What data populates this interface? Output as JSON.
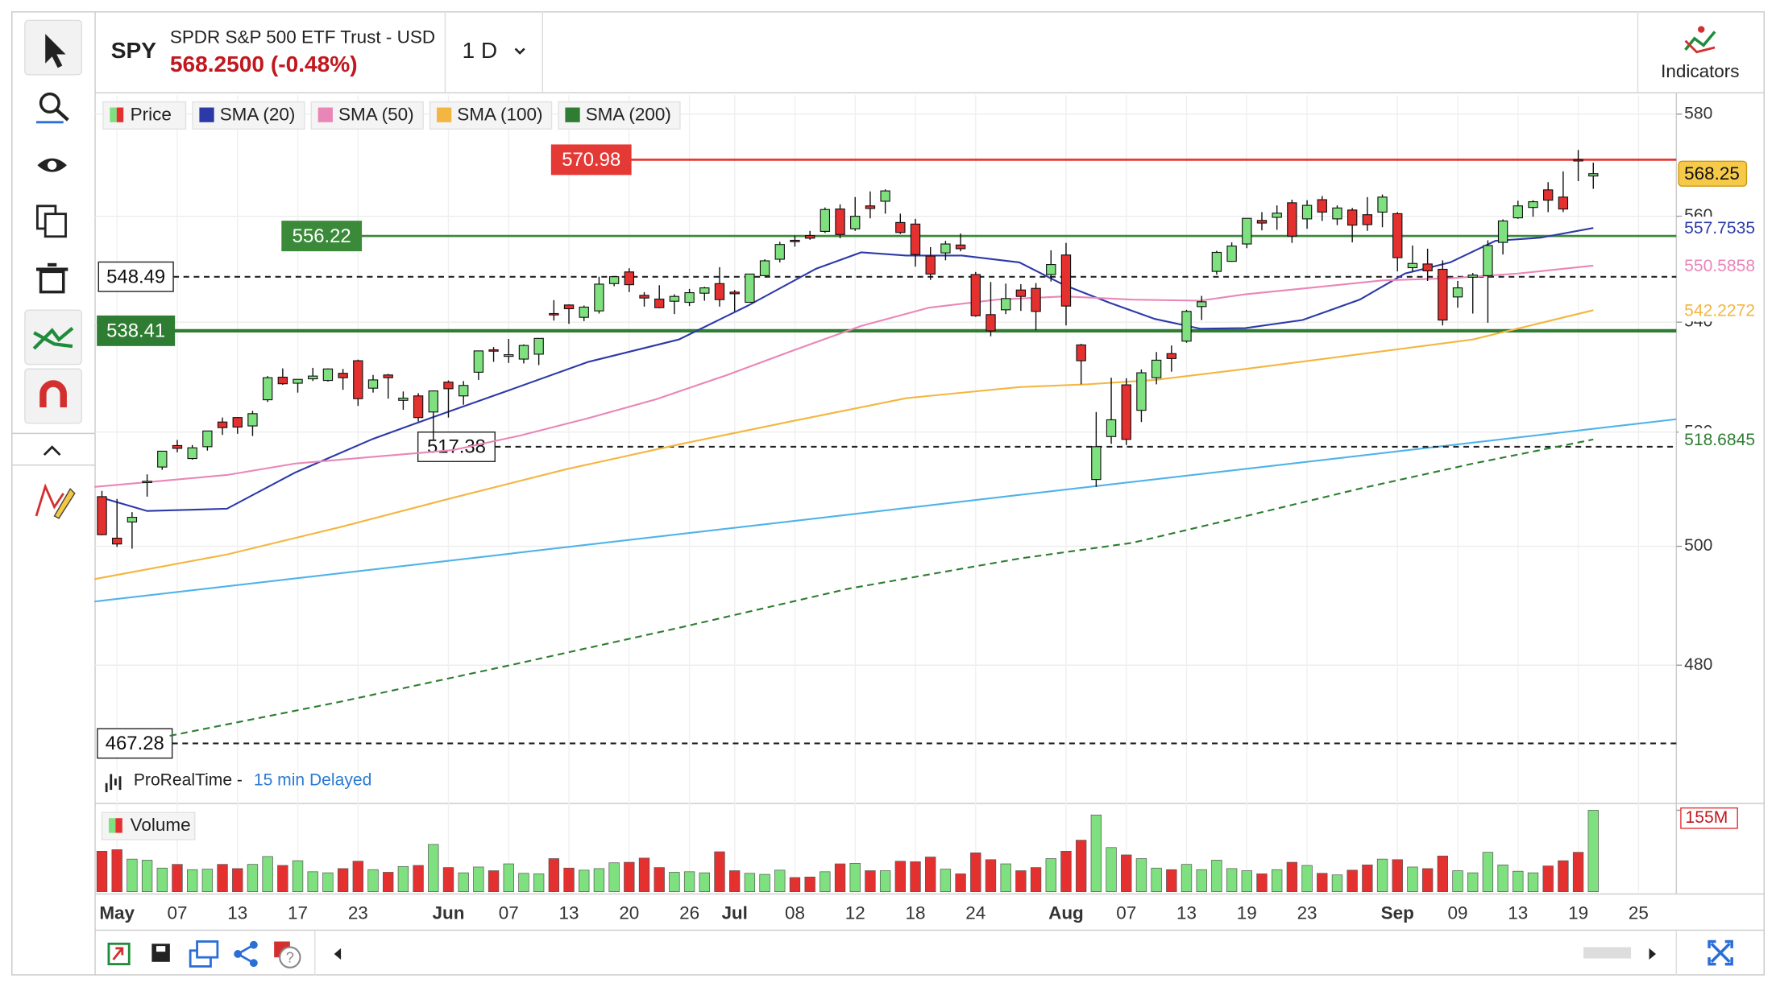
{
  "header": {
    "symbol": "SPY",
    "name": "SPDR S&P 500 ETF Trust - USD",
    "quote": "568.2500 (-0.48%)",
    "interval": "1 D",
    "indicators": "Indicators"
  },
  "footer": {
    "source": "ProRealTime -",
    "delay": "15 min Delayed"
  },
  "chart_data": {
    "type": "candlestick",
    "log": true,
    "grid": true,
    "ylim": [
      458.1,
      583.8
    ],
    "yticks": [
      480,
      500,
      520,
      540,
      560,
      580
    ],
    "price_legend": "Price",
    "up_color": "#7ee07e",
    "down_color": "#e53030",
    "last_price_color": "#f7c948",
    "categories": [
      null,
      "May",
      null,
      null,
      null,
      "07",
      null,
      null,
      null,
      "13",
      null,
      null,
      null,
      "17",
      null,
      null,
      null,
      "23",
      null,
      null,
      null,
      null,
      null,
      "Jun",
      null,
      null,
      null,
      "07",
      null,
      null,
      null,
      "13",
      null,
      null,
      null,
      "20",
      null,
      null,
      null,
      "26",
      null,
      null,
      "Jul",
      null,
      null,
      null,
      "08",
      null,
      null,
      null,
      "12",
      null,
      null,
      null,
      "18",
      null,
      null,
      null,
      "24",
      null,
      null,
      null,
      null,
      null,
      "Aug",
      null,
      null,
      null,
      "07",
      null,
      null,
      null,
      "13",
      null,
      null,
      null,
      "19",
      null,
      null,
      null,
      "23",
      null,
      null,
      null,
      null,
      null,
      "Sep",
      null,
      null,
      null,
      "09",
      null,
      null,
      null,
      "13",
      null,
      null,
      null,
      "19",
      null,
      null,
      null,
      "25"
    ],
    "open": [
      508.6,
      501.4,
      504.2,
      511.2,
      513.8,
      517.6,
      515.3,
      517.4,
      521.8,
      522.6,
      521.1,
      525.8,
      529.9,
      528.8,
      529.6,
      529.3,
      530.6,
      532.9,
      527.9,
      530.3,
      525.7,
      526.5,
      523.6,
      529.0,
      526.5,
      530.8,
      534.9,
      533.7,
      533.2,
      534.1,
      541.6,
      543.2,
      540.9,
      542.1,
      547.2,
      549.4,
      545.0,
      544.3,
      543.9,
      543.7,
      545.4,
      547.2,
      545.6,
      543.7,
      548.7,
      551.8,
      555.4,
      556.3,
      557.1,
      561.4,
      557.6,
      562.0,
      562.9,
      558.8,
      558.5,
      552.4,
      553.0,
      554.5,
      548.9,
      541.4,
      542.3,
      546.0,
      546.3,
      548.9,
      552.6,
      535.8,
      511.6,
      519.2,
      528.5,
      523.9,
      529.8,
      534.2,
      536.5,
      542.9,
      549.5,
      551.4,
      554.7,
      559.2,
      559.8,
      562.6,
      559.5,
      563.2,
      559.5,
      561.2,
      560.3,
      560.8,
      560.5,
      550.2,
      550.9,
      549.9,
      544.7,
      548.4,
      548.7,
      555.0,
      559.7,
      561.7,
      565.1,
      563.7,
      571.0,
      567.8,
      null,
      null,
      null
    ],
    "high": [
      509.6,
      508.2,
      505.9,
      512.5,
      516.6,
      518.6,
      517.7,
      520.2,
      522.6,
      522.7,
      523.8,
      530.1,
      531.5,
      529.5,
      531.6,
      531.5,
      531.4,
      533.1,
      530.3,
      530.5,
      527.3,
      527.0,
      527.5,
      529.3,
      529.2,
      534.7,
      535.4,
      536.9,
      535.9,
      537.0,
      544.1,
      543.3,
      543.1,
      548.5,
      548.6,
      550.1,
      545.6,
      546.9,
      545.2,
      546.2,
      546.6,
      550.3,
      546.0,
      549.0,
      551.8,
      555.1,
      556.3,
      557.2,
      561.7,
      562.3,
      563.7,
      564.8,
      565.2,
      560.5,
      559.5,
      554.1,
      555.3,
      556.7,
      549.4,
      547.5,
      547.2,
      547.1,
      547.3,
      553.5,
      554.9,
      536.0,
      523.6,
      529.8,
      529.7,
      531.3,
      534.5,
      535.7,
      542.3,
      544.9,
      553.4,
      555.0,
      559.6,
      560.8,
      562.1,
      563.2,
      563.1,
      563.9,
      562.1,
      561.6,
      563.7,
      564.2,
      560.8,
      554.4,
      553.8,
      551.6,
      547.7,
      549.2,
      555.4,
      559.4,
      563.0,
      563.1,
      566.6,
      568.7,
      572.9,
      570.4,
      null,
      null,
      null
    ],
    "low": [
      501.9,
      499.9,
      499.6,
      508.6,
      513.3,
      516.4,
      515.1,
      516.7,
      519.5,
      519.7,
      519.3,
      525.4,
      528.5,
      527.1,
      529.2,
      529.1,
      527.6,
      524.7,
      527.1,
      526.0,
      524.0,
      521.9,
      518.6,
      522.6,
      524.9,
      529.4,
      532.7,
      532.5,
      532.4,
      532.1,
      540.3,
      539.7,
      540.2,
      541.6,
      546.7,
      545.6,
      542.9,
      542.6,
      541.5,
      543.0,
      544.0,
      542.9,
      542.0,
      543.7,
      548.7,
      551.2,
      554.2,
      555.5,
      556.8,
      555.8,
      557.2,
      559.6,
      560.5,
      556.6,
      550.4,
      547.9,
      551.6,
      553.3,
      541.0,
      537.4,
      541.5,
      542.1,
      538.5,
      547.6,
      539.4,
      528.6,
      510.3,
      517.9,
      517.7,
      521.8,
      528.6,
      530.9,
      536.2,
      540.4,
      548.9,
      551.3,
      553.9,
      557.3,
      557.4,
      554.9,
      557.6,
      559.1,
      558.3,
      555.0,
      557.2,
      557.9,
      549.5,
      549.5,
      547.7,
      539.4,
      542.7,
      541.6,
      539.9,
      552.7,
      559.5,
      559.9,
      560.8,
      560.8,
      566.8,
      565.3,
      null,
      null,
      null
    ],
    "close": [
      502.0,
      500.4,
      505.0,
      511.3,
      516.6,
      517.1,
      517.2,
      520.2,
      520.8,
      520.9,
      523.3,
      529.8,
      528.7,
      529.5,
      530.1,
      531.4,
      529.8,
      526.0,
      529.4,
      529.8,
      526.1,
      522.6,
      527.4,
      527.8,
      528.4,
      534.7,
      534.7,
      534.0,
      535.7,
      537.0,
      541.4,
      542.5,
      542.8,
      547.1,
      548.5,
      547.0,
      544.5,
      542.7,
      544.8,
      545.5,
      546.4,
      544.2,
      545.3,
      549.0,
      551.5,
      554.6,
      555.3,
      555.8,
      561.3,
      556.5,
      560.0,
      561.5,
      564.9,
      556.9,
      552.7,
      549.0,
      554.7,
      553.8,
      541.2,
      538.4,
      544.4,
      544.8,
      542.0,
      550.8,
      543.0,
      532.9,
      517.4,
      522.2,
      518.7,
      530.7,
      533.0,
      533.3,
      542.0,
      543.8,
      553.1,
      554.3,
      559.6,
      558.7,
      560.6,
      556.2,
      562.1,
      560.8,
      561.6,
      558.3,
      558.4,
      563.7,
      552.1,
      551.0,
      549.6,
      540.4,
      546.4,
      548.8,
      554.4,
      559.1,
      562.0,
      562.8,
      563.1,
      561.4,
      570.98,
      568.25,
      null,
      null,
      null
    ],
    "series": [
      {
        "name": "SMA (20)",
        "color": "#2c3aa8",
        "dash": false,
        "x": [
          0,
          3,
          8.3,
          12.8,
          18,
          21.8,
          27.1,
          32.3,
          38.3,
          42.9,
          47.4,
          50.4,
          53.4,
          57.1,
          60.9,
          63.9,
          66.9,
          69.9,
          72.9,
          75.9,
          79.7,
          83.5,
          86.5,
          89.5,
          92.5,
          95.5,
          99
        ],
        "values": [
          508.4,
          506.1,
          506.5,
          512.8,
          518.8,
          522.5,
          527.6,
          532.7,
          536.8,
          543.1,
          550.0,
          553.1,
          552.5,
          552.5,
          551.2,
          546.9,
          543.6,
          540.6,
          538.8,
          538.9,
          540.4,
          544.2,
          549.1,
          551.2,
          555.3,
          555.9,
          557.7535
        ]
      },
      {
        "name": "SMA (50)",
        "color": "#e986b8",
        "dash": false,
        "x": [
          -0.5,
          8.3,
          12.8,
          18,
          23.3,
          27.8,
          32.3,
          36.8,
          41.4,
          45.9,
          50.4,
          54.9,
          59.4,
          63.9,
          68.4,
          72.9,
          75.9,
          80.5,
          85,
          89.5,
          94,
          99
        ],
        "values": [
          510.3,
          512.4,
          514.4,
          515.6,
          516.8,
          519.4,
          522.5,
          525.9,
          530.2,
          534.8,
          539.3,
          542.7,
          544.2,
          544.8,
          544.2,
          544.0,
          545.2,
          546.5,
          547.8,
          548.2,
          549.1,
          550.5858
        ]
      },
      {
        "name": "SMA (100)",
        "color": "#f3b640",
        "dash": false,
        "x": [
          -0.5,
          8.3,
          15.8,
          23.3,
          30.8,
          38.3,
          45.9,
          53.4,
          60.9,
          65.4,
          69.9,
          75.9,
          83.5,
          91,
          99
        ],
        "values": [
          494.4,
          498.6,
          503.3,
          508.4,
          513.4,
          517.8,
          522.0,
          526.1,
          528.1,
          528.6,
          529.4,
          531.4,
          534.1,
          536.8,
          542.2272
        ]
      },
      {
        "name": "SMA (200)",
        "color": "#2e7d32",
        "dash": true,
        "x": [
          4.5,
          15.8,
          27.1,
          38.3,
          49.6,
          60.9,
          68.4,
          75.9,
          83.5,
          91,
          99
        ],
        "values": [
          468.5,
          474.0,
          480.0,
          486.2,
          492.8,
          497.9,
          500.6,
          505.2,
          510.0,
          514.4,
          518.6845
        ]
      }
    ],
    "trendline": {
      "color": "#4fb3e8",
      "x": [
        -0.5,
        104.5
      ],
      "values": [
        490.6,
        522.3
      ]
    },
    "hlines": [
      {
        "value": 570.98,
        "color": "#e53935",
        "style": "solid"
      },
      {
        "value": 556.22,
        "color": "#3a8a3a",
        "style": "solid"
      },
      {
        "value": 548.49,
        "color": "#222222",
        "style": "dashed"
      },
      {
        "value": 538.41,
        "color": "#2e7d32",
        "style": "solid"
      },
      {
        "value": 517.38,
        "color": "#222222",
        "style": "dashed"
      },
      {
        "value": 467.28,
        "color": "#222222",
        "style": "dashed"
      }
    ],
    "volume": {
      "label": "Volume",
      "ylim": [
        0,
        155
      ],
      "yticks": [
        {
          "value": 155,
          "label": "155M"
        }
      ],
      "values": [
        77,
        80,
        62,
        60,
        45,
        52,
        42,
        43,
        52,
        44,
        52,
        67,
        50,
        59,
        38,
        36,
        44,
        58,
        42,
        37,
        48,
        50,
        90,
        46,
        36,
        47,
        40,
        53,
        35,
        34,
        63,
        45,
        41,
        44,
        55,
        56,
        64,
        46,
        37,
        38,
        36,
        76,
        40,
        35,
        33,
        41,
        27,
        28,
        38,
        53,
        54,
        40,
        40,
        58,
        57,
        66,
        43,
        34,
        74,
        61,
        53,
        40,
        46,
        63,
        77,
        98,
        146,
        84,
        70,
        63,
        45,
        42,
        52,
        42,
        60,
        44,
        40,
        34,
        42,
        56,
        50,
        35,
        32,
        41,
        51,
        62,
        61,
        47,
        44,
        68,
        40,
        36,
        75,
        51,
        39,
        36,
        49,
        59,
        75,
        155,
        null,
        null,
        null
      ]
    }
  }
}
